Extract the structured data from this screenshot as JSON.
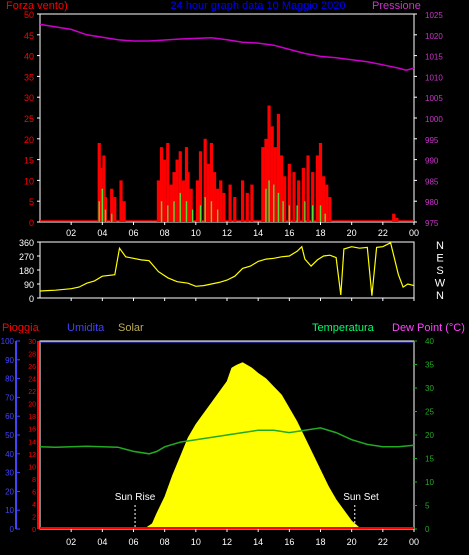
{
  "panel1": {
    "title": "24 hour graph data  10 Maggio 2020",
    "left_label": "Forza vento)",
    "right_label": "Pressione",
    "left_ticks": [
      "0",
      "5",
      "10",
      "15",
      "20",
      "25",
      "30",
      "35",
      "40",
      "45",
      "50"
    ],
    "right_ticks": [
      "975",
      "980",
      "985",
      "990",
      "995",
      "1000",
      "1005",
      "1010",
      "1015",
      "1020",
      "1025"
    ],
    "x_ticks": [
      "02",
      "04",
      "06",
      "08",
      "10",
      "12",
      "14",
      "16",
      "18",
      "20",
      "22",
      "00"
    ]
  },
  "panel2": {
    "left_ticks": [
      "0",
      "90",
      "180",
      "270",
      "360"
    ],
    "right_letters": [
      "N",
      "W",
      "S",
      "E",
      "N"
    ],
    "x_ticks": [
      "02",
      "04",
      "06",
      "08",
      "10",
      "12",
      "14",
      "16",
      "18",
      "20",
      "22",
      "00"
    ]
  },
  "panel3": {
    "labels": {
      "rain": "Pioggia",
      "humidity": "Umidita",
      "solar": "Solar",
      "temperature": "Temperatura",
      "dewpoint": "Dew Point (°C)"
    },
    "left_outer_ticks": [
      "0",
      "10",
      "20",
      "30",
      "40",
      "50",
      "60",
      "70",
      "80",
      "90",
      "100"
    ],
    "left_inner_ticks": [
      "0",
      "2",
      "4",
      "6",
      "8",
      "10",
      "12",
      "14",
      "16",
      "18",
      "20",
      "22",
      "24",
      "26",
      "28",
      "30"
    ],
    "right_ticks": [
      "0",
      "5",
      "10",
      "15",
      "20",
      "25",
      "30",
      "35",
      "40"
    ],
    "x_ticks": [
      "02",
      "04",
      "06",
      "08",
      "10",
      "12",
      "14",
      "16",
      "18",
      "20",
      "22",
      "00"
    ],
    "sunrise_label": "Sun Rise",
    "sunset_label": "Sun Set"
  },
  "colors": {
    "wind_gust": "#ff0000",
    "wind_avg": "#55dd33",
    "wind_low": "#ffff66",
    "pressure": "#cc00cc",
    "direction": "#ffff00",
    "solar": "#ffff00",
    "temperature": "#22aa22",
    "humidity": "#4444ff",
    "rain": "#ff0000",
    "axis": "#ffffff",
    "title": "#0000ff",
    "label_wind": "#ff0000",
    "label_pressure": "#cc33cc",
    "label_humidity": "#4040ff",
    "label_solar": "#bbaa55",
    "label_temp": "#00ff66",
    "label_dew": "#ff44ff",
    "dir_letters": "#ffffff"
  },
  "chart_data": [
    {
      "type": "bar",
      "title": "24 hour graph data  10 Maggio 2020",
      "x_unit": "hour",
      "xlim": [
        0,
        24
      ],
      "ylim_left": [
        0,
        50
      ],
      "ylim_right": [
        975,
        1025
      ],
      "series": [
        {
          "name": "Forza vento)",
          "axis": "left",
          "points": [
            [
              3.8,
              19
            ],
            [
              3.9,
              13
            ],
            [
              4.0,
              8
            ],
            [
              4.1,
              16
            ],
            [
              4.2,
              6
            ],
            [
              4.6,
              8
            ],
            [
              4.8,
              6
            ],
            [
              5.2,
              10
            ],
            [
              5.4,
              5
            ],
            [
              7.6,
              10
            ],
            [
              7.8,
              18
            ],
            [
              8.0,
              15
            ],
            [
              8.2,
              19
            ],
            [
              8.4,
              9
            ],
            [
              8.6,
              12
            ],
            [
              8.8,
              15
            ],
            [
              9.0,
              17
            ],
            [
              9.2,
              10
            ],
            [
              9.4,
              18
            ],
            [
              9.5,
              12
            ],
            [
              9.7,
              8
            ],
            [
              10.1,
              10
            ],
            [
              10.3,
              17
            ],
            [
              10.6,
              20
            ],
            [
              10.8,
              14
            ],
            [
              11.0,
              19
            ],
            [
              11.2,
              12
            ],
            [
              11.4,
              8
            ],
            [
              11.6,
              10
            ],
            [
              11.8,
              7
            ],
            [
              12.2,
              9
            ],
            [
              12.5,
              6
            ],
            [
              13.0,
              10
            ],
            [
              13.3,
              7
            ],
            [
              13.6,
              9
            ],
            [
              14.3,
              18
            ],
            [
              14.5,
              20
            ],
            [
              14.7,
              28
            ],
            [
              14.9,
              23
            ],
            [
              15.1,
              18
            ],
            [
              15.3,
              26
            ],
            [
              15.5,
              16
            ],
            [
              15.7,
              11
            ],
            [
              16.0,
              14
            ],
            [
              16.3,
              12
            ],
            [
              16.6,
              10
            ],
            [
              16.9,
              13
            ],
            [
              17.2,
              16
            ],
            [
              17.5,
              12
            ],
            [
              17.8,
              16
            ],
            [
              18.0,
              19
            ],
            [
              18.2,
              11
            ],
            [
              18.4,
              9
            ],
            [
              18.6,
              6
            ],
            [
              22.7,
              2
            ],
            [
              22.9,
              1
            ]
          ]
        },
        {
          "name": "",
          "axis": "left",
          "points": [
            [
              3.8,
              5
            ],
            [
              4.0,
              8
            ],
            [
              4.2,
              3
            ],
            [
              4.6,
              2
            ],
            [
              7.8,
              5
            ],
            [
              8.2,
              4
            ],
            [
              8.6,
              5
            ],
            [
              9.0,
              7
            ],
            [
              9.4,
              5
            ],
            [
              9.8,
              3
            ],
            [
              10.3,
              4
            ],
            [
              10.6,
              6
            ],
            [
              11.0,
              5
            ],
            [
              11.4,
              3
            ],
            [
              14.5,
              8
            ],
            [
              14.7,
              10
            ],
            [
              15.0,
              9
            ],
            [
              15.3,
              7
            ],
            [
              15.6,
              5
            ],
            [
              16.0,
              4
            ],
            [
              16.5,
              4
            ],
            [
              17.0,
              5
            ],
            [
              17.5,
              4
            ],
            [
              18.0,
              4
            ],
            [
              18.3,
              2
            ]
          ]
        },
        {
          "name": "",
          "type": "line",
          "axis": "right",
          "points": [
            [
              0,
              1022.5
            ],
            [
              2,
              1021.3
            ],
            [
              3,
              1020
            ],
            [
              5,
              1018.8
            ],
            [
              6,
              1018.5
            ],
            [
              7,
              1018.5
            ],
            [
              9,
              1019
            ],
            [
              11,
              1019.3
            ],
            [
              12,
              1018.8
            ],
            [
              13,
              1018.2
            ],
            [
              14,
              1018
            ],
            [
              15,
              1017.5
            ],
            [
              16,
              1016.5
            ],
            [
              17,
              1015.5
            ],
            [
              18,
              1014.8
            ],
            [
              19,
              1014.5
            ],
            [
              20,
              1014
            ],
            [
              21,
              1013.5
            ],
            [
              22,
              1012.8
            ],
            [
              23,
              1012
            ],
            [
              23.5,
              1011.5
            ],
            [
              24,
              1012
            ]
          ]
        }
      ]
    },
    {
      "type": "line",
      "xlim": [
        0,
        24
      ],
      "ylim": [
        0,
        360
      ],
      "series": [
        {
          "name": "",
          "points": [
            [
              0,
              45
            ],
            [
              1,
              50
            ],
            [
              2,
              60
            ],
            [
              2.5,
              70
            ],
            [
              3,
              95
            ],
            [
              3.5,
              110
            ],
            [
              4,
              140
            ],
            [
              4.8,
              150
            ],
            [
              5.1,
              320
            ],
            [
              5.5,
              265
            ],
            [
              6.5,
              245
            ],
            [
              7.0,
              240
            ],
            [
              7.6,
              170
            ],
            [
              8.2,
              130
            ],
            [
              8.8,
              105
            ],
            [
              9.5,
              95
            ],
            [
              10,
              75
            ],
            [
              10.5,
              80
            ],
            [
              11,
              90
            ],
            [
              11.5,
              100
            ],
            [
              12,
              115
            ],
            [
              12.5,
              140
            ],
            [
              13,
              190
            ],
            [
              13.5,
              205
            ],
            [
              14,
              235
            ],
            [
              14.5,
              250
            ],
            [
              15,
              255
            ],
            [
              15.5,
              265
            ],
            [
              16,
              270
            ],
            [
              16.5,
              300
            ],
            [
              16.8,
              330
            ],
            [
              17.0,
              250
            ],
            [
              17.4,
              205
            ],
            [
              17.8,
              245
            ],
            [
              18.2,
              270
            ],
            [
              18.6,
              275
            ],
            [
              19,
              260
            ],
            [
              19.3,
              20
            ],
            [
              19.5,
              315
            ],
            [
              20,
              330
            ],
            [
              20.5,
              320
            ],
            [
              21,
              325
            ],
            [
              21.3,
              15
            ],
            [
              21.6,
              325
            ],
            [
              22,
              330
            ],
            [
              22.5,
              355
            ],
            [
              23,
              150
            ],
            [
              23.3,
              70
            ],
            [
              23.6,
              90
            ],
            [
              24,
              80
            ]
          ]
        }
      ]
    },
    {
      "type": "area",
      "xlim": [
        0,
        24
      ],
      "ylim_solar": [
        0,
        700
      ],
      "ylim_temp": [
        0,
        40
      ],
      "sunrise_hour": 6.1,
      "sunset_hour": 20.2,
      "series": [
        {
          "name": "Solar",
          "points": [
            [
              6,
              0
            ],
            [
              6.8,
              5
            ],
            [
              7.2,
              20
            ],
            [
              7.5,
              60
            ],
            [
              8,
              120
            ],
            [
              8.5,
              200
            ],
            [
              9,
              270
            ],
            [
              9.5,
              340
            ],
            [
              10,
              390
            ],
            [
              10.5,
              430
            ],
            [
              11,
              470
            ],
            [
              11.5,
              510
            ],
            [
              12,
              550
            ],
            [
              12.3,
              600
            ],
            [
              12.6,
              610
            ],
            [
              13,
              620
            ],
            [
              13.3,
              610
            ],
            [
              13.6,
              600
            ],
            [
              14,
              580
            ],
            [
              14.5,
              560
            ],
            [
              15,
              530
            ],
            [
              15.5,
              500
            ],
            [
              16,
              450
            ],
            [
              16.5,
              400
            ],
            [
              17,
              340
            ],
            [
              17.5,
              280
            ],
            [
              18,
              220
            ],
            [
              18.5,
              160
            ],
            [
              19,
              110
            ],
            [
              19.5,
              70
            ],
            [
              20,
              30
            ],
            [
              20.5,
              5
            ],
            [
              21,
              0
            ]
          ]
        },
        {
          "name": "Temperatura",
          "points": [
            [
              0,
              17.5
            ],
            [
              1,
              17.4
            ],
            [
              2,
              17.5
            ],
            [
              3,
              17.6
            ],
            [
              4,
              17.5
            ],
            [
              5,
              17.4
            ],
            [
              6,
              16.5
            ],
            [
              7,
              16
            ],
            [
              7.5,
              16.5
            ],
            [
              8,
              17.5
            ],
            [
              9,
              18.5
            ],
            [
              10,
              19
            ],
            [
              11,
              19.5
            ],
            [
              12,
              20
            ],
            [
              13,
              20.5
            ],
            [
              14,
              21
            ],
            [
              15,
              21
            ],
            [
              16,
              20.5
            ],
            [
              17,
              21
            ],
            [
              18,
              21.5
            ],
            [
              19,
              20.5
            ],
            [
              20,
              19
            ],
            [
              21,
              18
            ],
            [
              22,
              17.5
            ],
            [
              23,
              17.5
            ],
            [
              24,
              17.8
            ]
          ]
        },
        {
          "name": "Pioggia",
          "points": [
            [
              0,
              0
            ],
            [
              24,
              0
            ]
          ]
        }
      ]
    }
  ]
}
